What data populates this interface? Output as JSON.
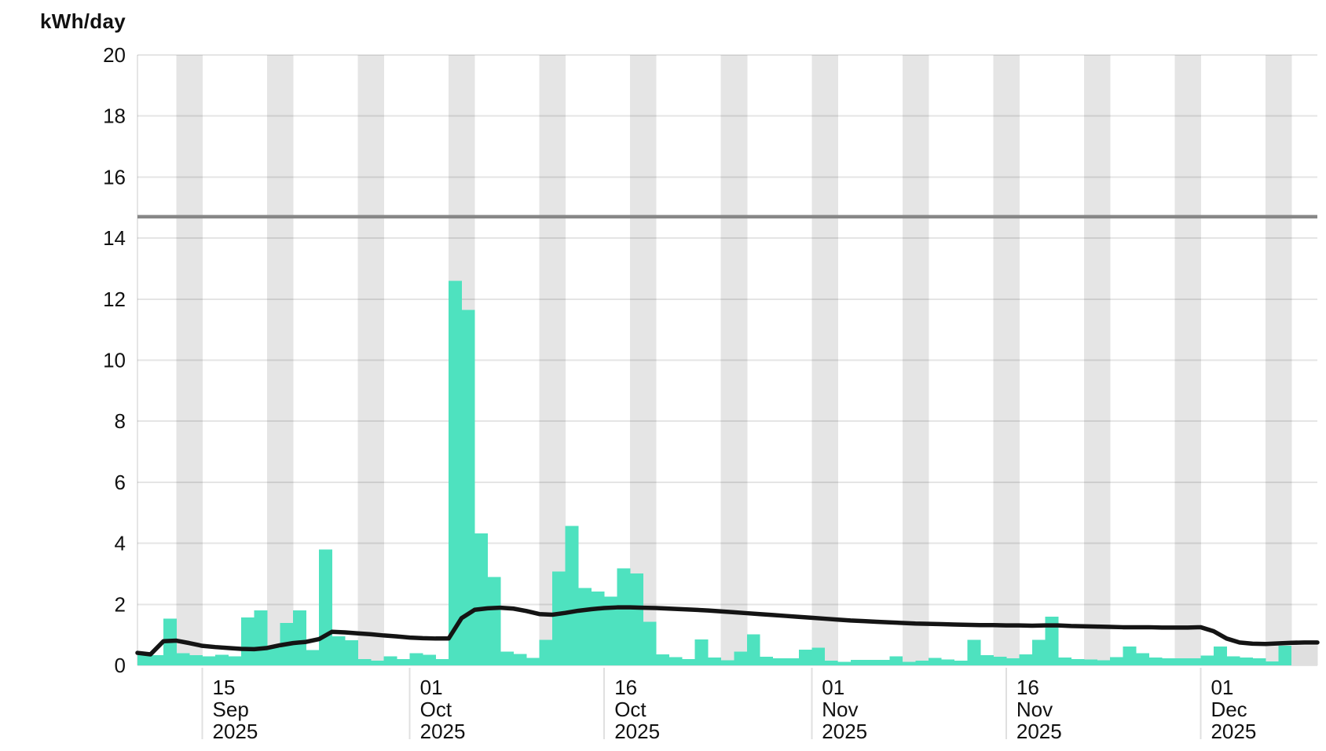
{
  "app": {
    "unit_label": "kWh/day"
  },
  "chart_data": {
    "type": "bar",
    "subtype": "daily-bars-with-average-line",
    "title": "",
    "ylabel": "kWh/day",
    "xlabel": "",
    "start_date": "2025-09-10",
    "num_days": 91,
    "y_axis": {
      "min": 0,
      "max": 20,
      "tick_step": 2,
      "tick_labels": [
        "0",
        "2",
        "4",
        "6",
        "8",
        "10",
        "12",
        "14",
        "16",
        "18",
        "20"
      ]
    },
    "x_ticks": [
      {
        "date": "2025-09-15",
        "lines": [
          "15",
          "Sep",
          "2025"
        ]
      },
      {
        "date": "2025-10-01",
        "lines": [
          "01",
          "Oct",
          "2025"
        ]
      },
      {
        "date": "2025-10-16",
        "lines": [
          "16",
          "Oct",
          "2025"
        ]
      },
      {
        "date": "2025-11-01",
        "lines": [
          "01",
          "Nov",
          "2025"
        ]
      },
      {
        "date": "2025-11-16",
        "lines": [
          "16",
          "Nov",
          "2025"
        ]
      },
      {
        "date": "2025-12-01",
        "lines": [
          "01",
          "Dec",
          "2025"
        ]
      }
    ],
    "weekend_shading": true,
    "grid": true,
    "legend": "none",
    "threshold": {
      "name": "limit-line",
      "value": 14.7,
      "color": "#878787"
    },
    "bars": {
      "name": "daily-consumption",
      "color": "#4EE2BF",
      "estimated_color": "#dfdfdf",
      "estimated_dates": [
        "2025-12-08",
        "2025-12-09"
      ],
      "values": [
        0.41,
        0.33,
        1.53,
        0.4,
        0.33,
        0.3,
        0.35,
        0.3,
        1.57,
        1.8,
        0.58,
        1.39,
        1.8,
        0.5,
        3.8,
        0.95,
        0.82,
        0.21,
        0.15,
        0.3,
        0.21,
        0.4,
        0.35,
        0.2,
        12.6,
        11.65,
        4.33,
        2.89,
        0.45,
        0.37,
        0.25,
        0.84,
        3.08,
        4.57,
        2.53,
        2.42,
        2.25,
        3.18,
        3.01,
        1.43,
        0.36,
        0.27,
        0.21,
        0.85,
        0.26,
        0.17,
        0.45,
        1.02,
        0.28,
        0.23,
        0.23,
        0.52,
        0.58,
        0.15,
        0.12,
        0.18,
        0.18,
        0.18,
        0.3,
        0.12,
        0.15,
        0.24,
        0.19,
        0.16,
        0.84,
        0.33,
        0.28,
        0.23,
        0.36,
        0.84,
        1.59,
        0.26,
        0.2,
        0.19,
        0.17,
        0.27,
        0.62,
        0.4,
        0.26,
        0.23,
        0.23,
        0.23,
        0.32,
        0.62,
        0.3,
        0.26,
        0.23,
        0.13,
        0.64,
        0.65,
        0.65
      ]
    },
    "line": {
      "name": "rolling-average",
      "color": "#141414",
      "values": [
        0.41,
        0.36,
        0.79,
        0.81,
        0.73,
        0.64,
        0.6,
        0.57,
        0.54,
        0.53,
        0.57,
        0.66,
        0.73,
        0.77,
        0.86,
        1.1,
        1.08,
        1.05,
        1.02,
        0.98,
        0.95,
        0.91,
        0.89,
        0.88,
        0.88,
        1.55,
        1.82,
        1.87,
        1.89,
        1.86,
        1.78,
        1.68,
        1.66,
        1.72,
        1.79,
        1.84,
        1.88,
        1.9,
        1.9,
        1.89,
        1.88,
        1.86,
        1.84,
        1.82,
        1.8,
        1.77,
        1.74,
        1.71,
        1.68,
        1.65,
        1.62,
        1.59,
        1.56,
        1.53,
        1.5,
        1.47,
        1.45,
        1.43,
        1.41,
        1.39,
        1.37,
        1.36,
        1.35,
        1.34,
        1.33,
        1.32,
        1.32,
        1.31,
        1.31,
        1.3,
        1.31,
        1.31,
        1.29,
        1.28,
        1.27,
        1.26,
        1.25,
        1.25,
        1.25,
        1.24,
        1.24,
        1.24,
        1.25,
        1.12,
        0.88,
        0.75,
        0.71,
        0.7,
        0.72,
        0.74,
        0.75
      ]
    }
  },
  "colors": {
    "background": "#ffffff",
    "weekend_band": "#e5e5e5",
    "gridline": "rgba(0,0,0,0.10)",
    "tick_line": "#e0e0e0",
    "text": "#111111"
  }
}
